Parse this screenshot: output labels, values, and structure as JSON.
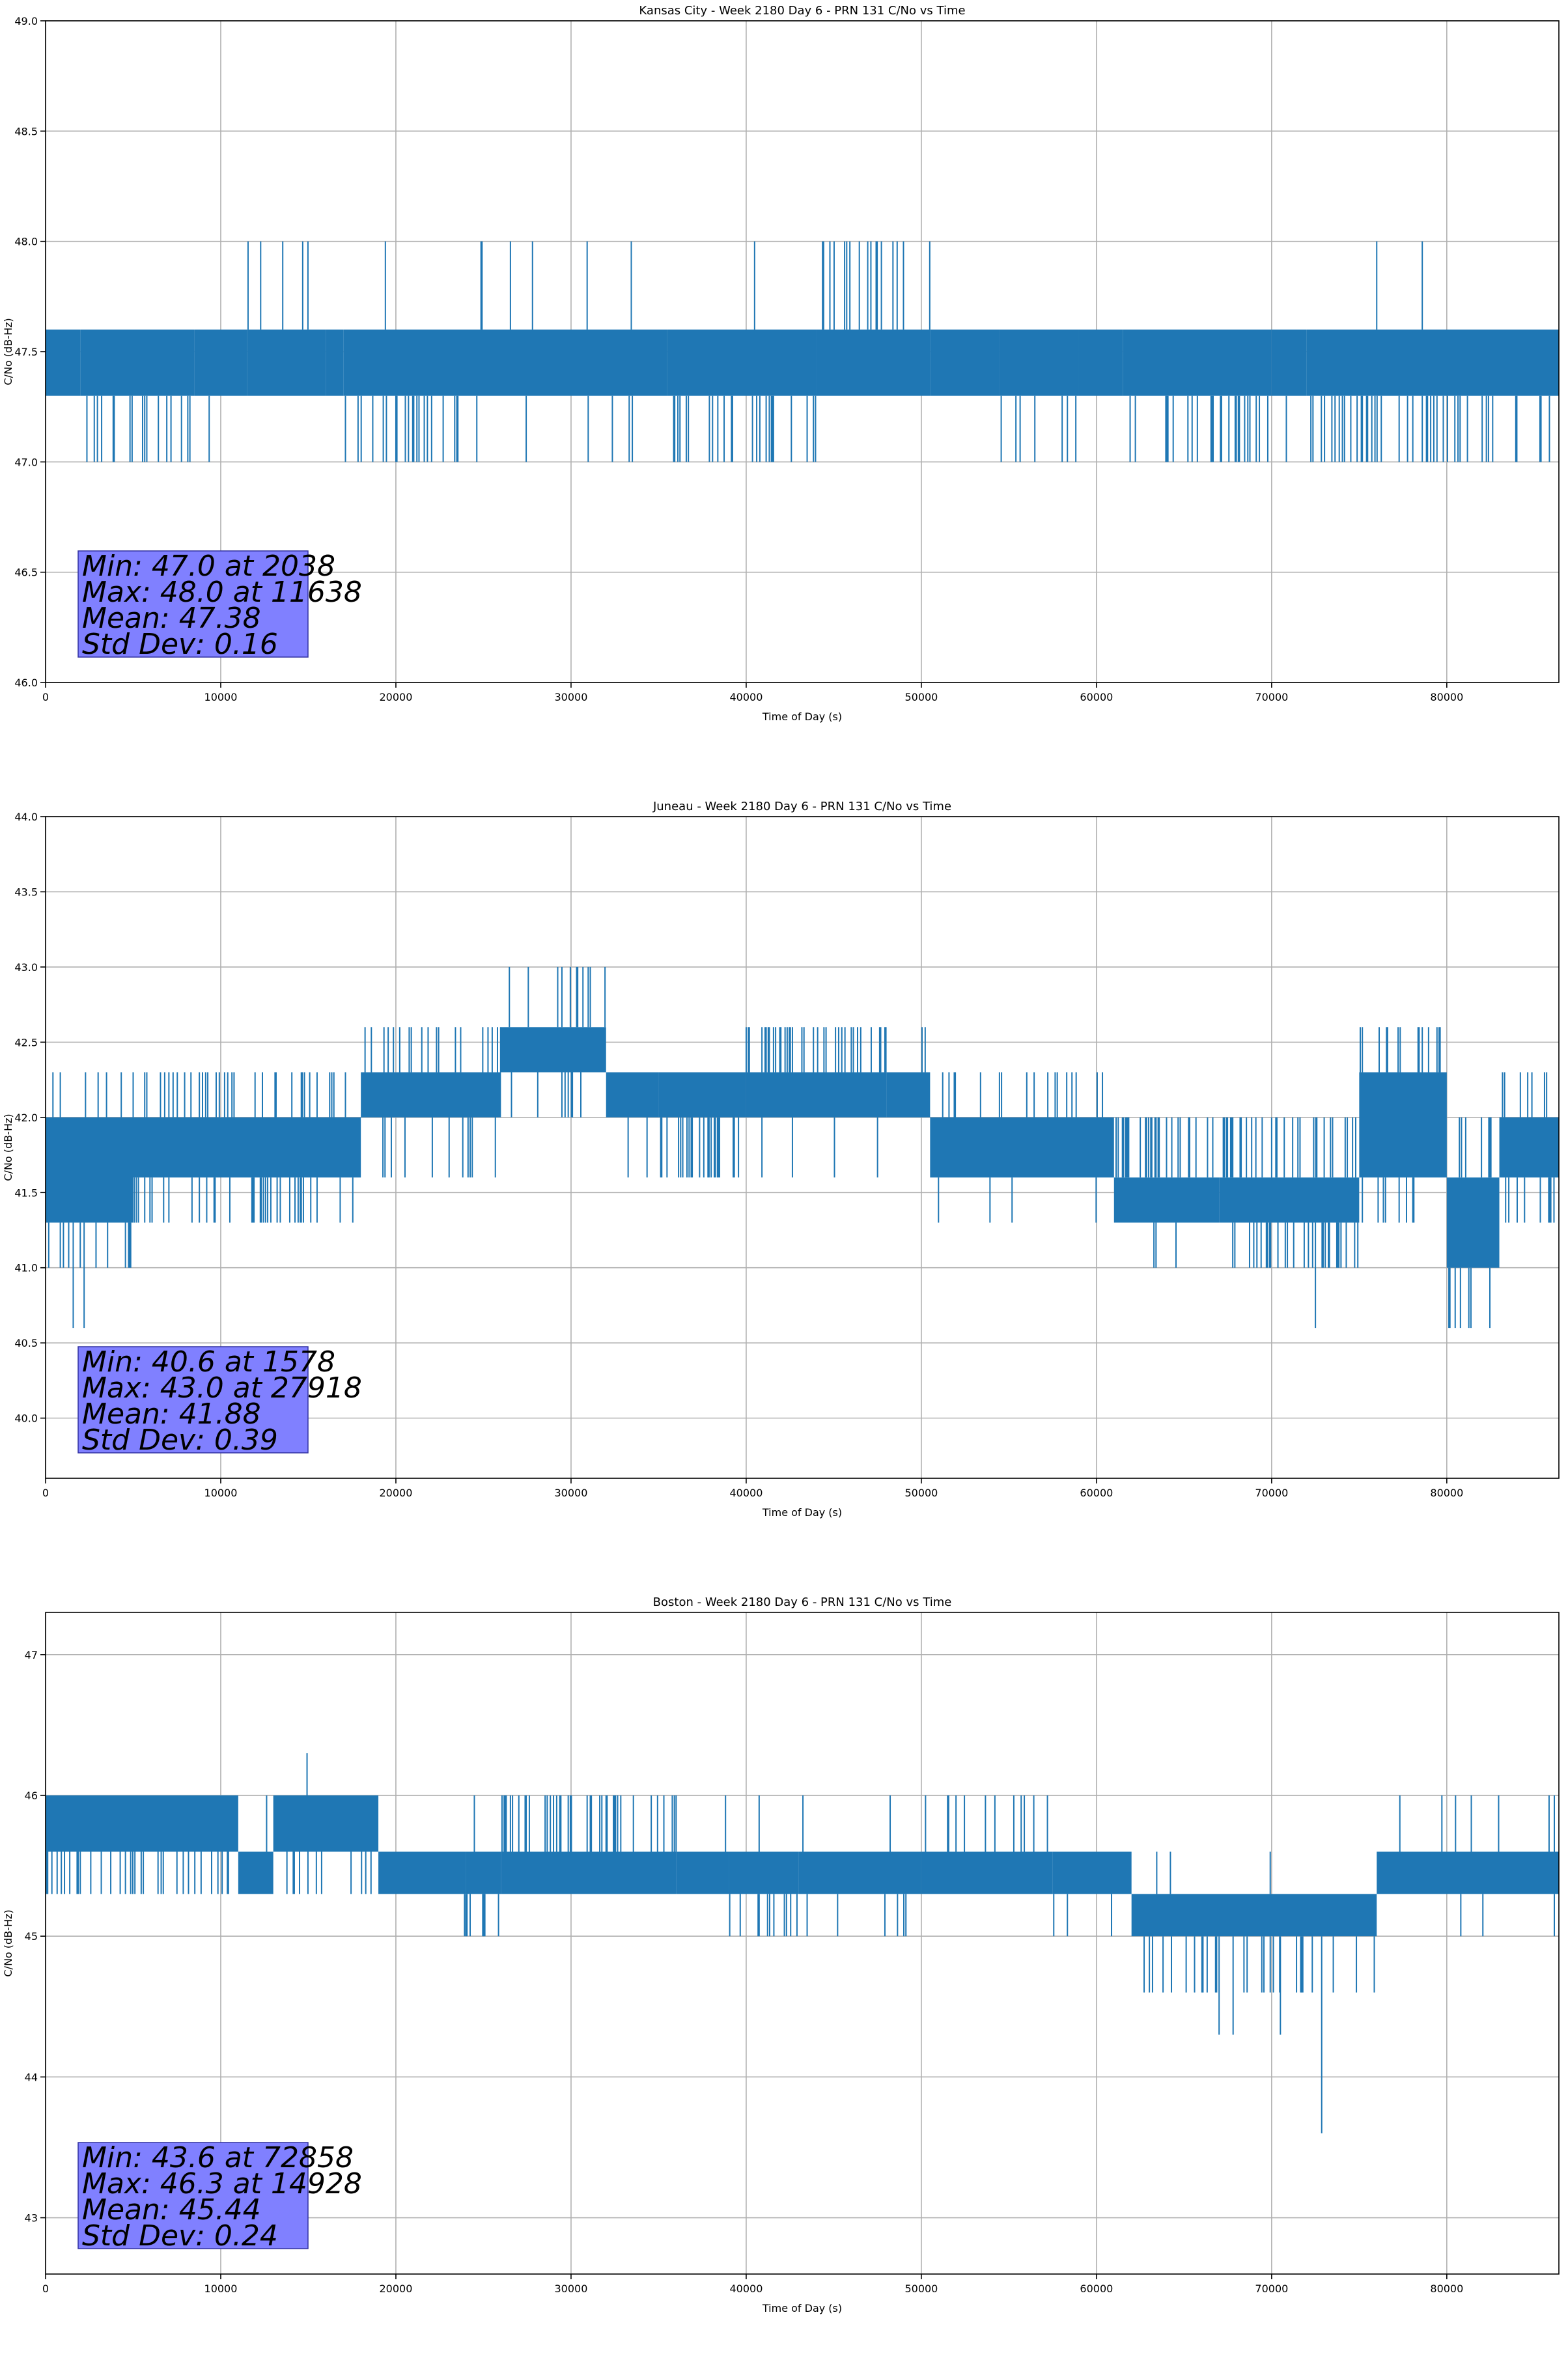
{
  "chart_data": [
    {
      "type": "line",
      "title": "Kansas City - Week 2180 Day 6 - PRN 131 C/No vs Time",
      "xlabel": "Time of Day (s)",
      "ylabel": "C/No (dB-Hz)",
      "xlim": [
        0,
        86400
      ],
      "ylim": [
        46.0,
        49.0
      ],
      "xticks": [
        0,
        10000,
        20000,
        30000,
        40000,
        50000,
        60000,
        70000,
        80000
      ],
      "xtick_labels": [
        "0",
        "10000",
        "20000",
        "30000",
        "40000",
        "50000",
        "60000",
        "70000",
        "80000"
      ],
      "yticks": [
        46.0,
        46.5,
        47.0,
        47.5,
        48.0,
        48.5,
        49.0
      ],
      "ytick_labels": [
        "46.0",
        "46.5",
        "47.0",
        "47.5",
        "48.0",
        "48.5",
        "49.0"
      ],
      "grid": true,
      "color": "#1f77b4",
      "bands_desc": "[t_start, t_end, low, high, dip_level, dip_density, spike_level, spike_density]",
      "bands": [
        [
          0,
          2000,
          47.3,
          47.6,
          47.3,
          0,
          48.0,
          0
        ],
        [
          2000,
          8500,
          47.3,
          47.6,
          47.0,
          0.6,
          48.0,
          0
        ],
        [
          8500,
          11500,
          47.3,
          47.6,
          47.0,
          0.02,
          48.0,
          0
        ],
        [
          11500,
          16000,
          47.3,
          47.6,
          47.0,
          0,
          48.0,
          0.3
        ],
        [
          16000,
          17000,
          47.3,
          47.6,
          47.0,
          0,
          48.0,
          0
        ],
        [
          17000,
          24500,
          47.3,
          47.6,
          47.0,
          0.5,
          48.0,
          0.02
        ],
        [
          24500,
          35500,
          47.3,
          47.6,
          47.0,
          0.05,
          48.0,
          0.06
        ],
        [
          35500,
          44000,
          47.3,
          47.6,
          47.0,
          0.5,
          48.0,
          0.02
        ],
        [
          44000,
          50500,
          47.3,
          47.6,
          47.0,
          0.01,
          48.0,
          0.3
        ],
        [
          50500,
          54500,
          47.3,
          47.6,
          47.0,
          0,
          48.0,
          0
        ],
        [
          54500,
          59000,
          47.3,
          47.6,
          47.0,
          0.25,
          48.0,
          0
        ],
        [
          59000,
          61500,
          47.3,
          47.6,
          47.0,
          0,
          48.0,
          0
        ],
        [
          61500,
          70000,
          47.3,
          47.6,
          47.0,
          0.55,
          48.0,
          0
        ],
        [
          70000,
          72000,
          47.3,
          47.6,
          47.0,
          0.1,
          48.0,
          0
        ],
        [
          72000,
          86400,
          47.3,
          47.6,
          47.0,
          0.45,
          48.0,
          0
        ]
      ],
      "spikes": [
        [
          76000,
          48.0
        ],
        [
          78600,
          48.0
        ]
      ],
      "stats": {
        "min": "Min: 47.0 at 2038",
        "max": "Max: 48.0 at 11638",
        "mean": "Mean: 47.38",
        "std": "Std Dev: 0.16"
      }
    },
    {
      "type": "line",
      "title": "Juneau - Week 2180 Day 6 - PRN 131 C/No vs Time",
      "xlabel": "Time of Day (s)",
      "ylabel": "C/No (dB-Hz)",
      "xlim": [
        0,
        86400
      ],
      "ylim": [
        39.6,
        44.0
      ],
      "xticks": [
        0,
        10000,
        20000,
        30000,
        40000,
        50000,
        60000,
        70000,
        80000
      ],
      "xtick_labels": [
        "0",
        "10000",
        "20000",
        "30000",
        "40000",
        "50000",
        "60000",
        "70000",
        "80000"
      ],
      "yticks": [
        40.0,
        40.5,
        41.0,
        41.5,
        42.0,
        42.5,
        43.0,
        43.5,
        44.0
      ],
      "ytick_labels": [
        "40.0",
        "40.5",
        "41.0",
        "41.5",
        "42.0",
        "42.5",
        "43.0",
        "43.5",
        "44.0"
      ],
      "grid": true,
      "color": "#1f77b4",
      "bands": [
        [
          0,
          5000,
          41.3,
          42.0,
          41.0,
          0.5,
          42.3,
          0.1
        ],
        [
          5000,
          18000,
          41.6,
          42.0,
          41.3,
          0.4,
          42.3,
          0.4
        ],
        [
          18000,
          26000,
          42.0,
          42.3,
          41.6,
          0.3,
          42.6,
          0.4
        ],
        [
          26000,
          32000,
          42.3,
          42.6,
          42.0,
          0.2,
          43.0,
          0.3
        ],
        [
          32000,
          35000,
          42.0,
          42.3,
          41.6,
          0.05,
          42.6,
          0.2
        ],
        [
          35000,
          40000,
          42.0,
          42.3,
          41.6,
          0.5,
          42.3,
          0
        ],
        [
          40000,
          48000,
          42.0,
          42.3,
          41.6,
          0.1,
          42.6,
          0.6
        ],
        [
          48000,
          50500,
          42.0,
          42.3,
          41.6,
          0.05,
          42.6,
          0.1
        ],
        [
          50500,
          61000,
          41.6,
          42.0,
          41.3,
          0.1,
          42.3,
          0.3
        ],
        [
          61000,
          67000,
          41.3,
          41.6,
          41.0,
          0.1,
          42.0,
          0.6
        ],
        [
          67000,
          75000,
          41.3,
          41.6,
          41.0,
          0.5,
          42.0,
          0.6
        ],
        [
          75000,
          80000,
          41.6,
          42.3,
          41.3,
          0.2,
          42.6,
          0.4
        ],
        [
          80000,
          83000,
          41.0,
          41.6,
          40.6,
          0.5,
          42.0,
          0.5
        ],
        [
          83000,
          86400,
          41.6,
          42.0,
          41.3,
          0.3,
          42.3,
          0.4
        ]
      ],
      "spikes": [
        [
          1578,
          40.6
        ],
        [
          2200,
          40.6
        ],
        [
          72500,
          40.6
        ]
      ],
      "stats": {
        "min": "Min: 40.6 at 1578",
        "max": "Max: 43.0 at 27918",
        "mean": "Mean: 41.88",
        "std": "Std Dev: 0.39"
      }
    },
    {
      "type": "line",
      "title": "Boston - Week 2180 Day 6 - PRN 131 C/No vs Time",
      "xlabel": "Time of Day (s)",
      "ylabel": "C/No (dB-Hz)",
      "xlim": [
        0,
        86400
      ],
      "ylim": [
        42.6,
        47.3
      ],
      "xticks": [
        0,
        10000,
        20000,
        30000,
        40000,
        50000,
        60000,
        70000,
        80000
      ],
      "xtick_labels": [
        "0",
        "10000",
        "20000",
        "30000",
        "40000",
        "50000",
        "60000",
        "70000",
        "80000"
      ],
      "yticks": [
        43,
        44,
        45,
        46,
        47
      ],
      "ytick_labels": [
        "43",
        "44",
        "45",
        "46",
        "47"
      ],
      "grid": true,
      "color": "#1f77b4",
      "bands": [
        [
          0,
          11000,
          45.6,
          46.0,
          45.3,
          0.4,
          46.0,
          0
        ],
        [
          11000,
          13000,
          45.3,
          45.6,
          45.3,
          0,
          46.0,
          0.15
        ],
        [
          13000,
          19000,
          45.6,
          46.0,
          45.3,
          0.2,
          46.0,
          0
        ],
        [
          19000,
          24000,
          45.3,
          45.6,
          45.0,
          0.02,
          45.6,
          0
        ],
        [
          24000,
          26000,
          45.3,
          45.6,
          45.0,
          0.6,
          46.0,
          0.05
        ],
        [
          26000,
          36000,
          45.3,
          45.6,
          45.0,
          0,
          46.0,
          0.6
        ],
        [
          36000,
          39000,
          45.3,
          45.6,
          45.0,
          0,
          46.0,
          0.02
        ],
        [
          39000,
          43000,
          45.3,
          45.6,
          45.0,
          0.5,
          46.0,
          0.05
        ],
        [
          43000,
          50000,
          45.3,
          45.6,
          45.0,
          0.05,
          46.0,
          0.08
        ],
        [
          50000,
          57500,
          45.3,
          45.6,
          45.0,
          0.05,
          46.0,
          0.3
        ],
        [
          57500,
          62000,
          45.3,
          45.6,
          45.0,
          0.05,
          46.0,
          0
        ],
        [
          62000,
          76000,
          45.0,
          45.3,
          44.6,
          0.35,
          45.6,
          0.05
        ],
        [
          76000,
          86400,
          45.3,
          45.6,
          45.0,
          0.05,
          46.0,
          0.08
        ]
      ],
      "spikes": [
        [
          14928,
          46.3
        ],
        [
          67000,
          44.3
        ],
        [
          67800,
          44.3
        ],
        [
          70500,
          44.3
        ],
        [
          72858,
          43.6
        ]
      ],
      "stats": {
        "min": "Min: 43.6 at 72858",
        "max": "Max: 46.3 at 14928",
        "mean": "Mean: 45.44",
        "std": "Std Dev: 0.24"
      }
    }
  ]
}
